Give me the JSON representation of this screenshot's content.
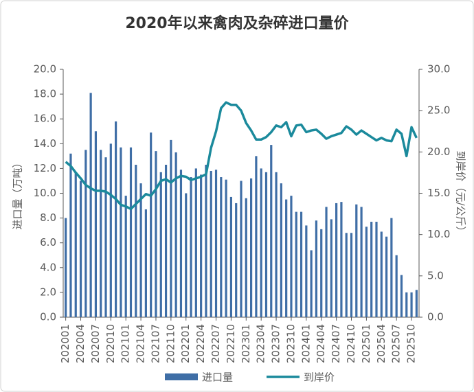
{
  "chart_data": {
    "type": "bar-line",
    "title": "2020年以来禽肉及杂碎进口量价",
    "ylabel": "进口量（万吨）",
    "y2label": "到岸价（元/公斤）",
    "categories": [
      "202001",
      null,
      null,
      "202004",
      null,
      null,
      "202007",
      null,
      null,
      "202010",
      null,
      null,
      "202101",
      null,
      null,
      "202104",
      null,
      null,
      "202107",
      null,
      null,
      "202110",
      null,
      null,
      "202201",
      null,
      null,
      "202204",
      null,
      null,
      "202207",
      null,
      null,
      "202210",
      null,
      null,
      "202301",
      null,
      null,
      "202304",
      null,
      null,
      "202307",
      null,
      null,
      "202310",
      null,
      null,
      "202401",
      null,
      null,
      "202404",
      null,
      null,
      "202407",
      null,
      null,
      "202410",
      null,
      null,
      "202501",
      null,
      null,
      "202504",
      null,
      null,
      "202507",
      null,
      null,
      "202510",
      null
    ],
    "series": [
      {
        "name": "进口量",
        "type": "bar",
        "color": "#3f6ea6",
        "values": [
          8.0,
          13.2,
          11.7,
          11.0,
          13.5,
          18.1,
          15.0,
          13.5,
          12.9,
          14.0,
          15.8,
          13.7,
          9.8,
          13.7,
          12.3,
          10.8,
          8.7,
          14.9,
          13.4,
          11.7,
          12.3,
          14.3,
          13.3,
          11.9,
          10.0,
          11.3,
          12.0,
          11.5,
          12.3,
          11.8,
          11.9,
          11.3,
          11.1,
          9.7,
          9.2,
          11.0,
          9.6,
          11.2,
          13.0,
          12.0,
          11.7,
          13.9,
          11.7,
          10.8,
          9.5,
          9.8,
          8.5,
          8.5,
          7.4,
          5.4,
          7.8,
          7.1,
          8.9,
          7.9,
          9.2,
          9.3,
          6.8,
          6.8,
          9.1,
          8.9,
          7.3,
          7.7,
          7.7,
          6.9,
          6.5,
          8.0,
          5.0,
          3.4,
          2.0,
          2.0,
          2.2
        ]
      },
      {
        "name": "到岸价",
        "type": "line",
        "axis": "y2",
        "color": "#1b8a9c",
        "values": [
          18.8,
          18.3,
          17.5,
          16.8,
          16.0,
          15.6,
          15.3,
          15.3,
          15.2,
          14.8,
          14.3,
          13.6,
          13.4,
          13.1,
          13.7,
          14.3,
          14.9,
          14.7,
          15.5,
          16.5,
          16.7,
          16.3,
          16.8,
          17.1,
          17.0,
          16.6,
          16.8,
          17.0,
          17.3,
          20.5,
          22.5,
          25.3,
          26.0,
          25.7,
          25.7,
          25.0,
          23.5,
          22.6,
          21.5,
          21.5,
          21.8,
          22.4,
          23.2,
          23.0,
          23.6,
          21.9,
          23.2,
          23.3,
          22.4,
          22.6,
          22.7,
          22.2,
          21.6,
          21.9,
          22.1,
          22.3,
          23.1,
          22.7,
          22.1,
          22.6,
          22.2,
          21.8,
          21.4,
          21.7,
          21.4,
          21.3,
          22.7,
          22.2,
          19.5,
          23.0,
          21.7
        ]
      }
    ],
    "ylim": [
      0,
      20
    ],
    "yticks": [
      {
        "value": 0,
        "label": "0.0"
      },
      {
        "value": 2,
        "label": "2.0"
      },
      {
        "value": 4,
        "label": "4.0"
      },
      {
        "value": 6,
        "label": "6.0"
      },
      {
        "value": 8,
        "label": "8.0"
      },
      {
        "value": 10,
        "label": "10.0"
      },
      {
        "value": 12,
        "label": "12.0"
      },
      {
        "value": 14,
        "label": "14.0"
      },
      {
        "value": 16,
        "label": "16.0"
      },
      {
        "value": 18,
        "label": "18.0"
      },
      {
        "value": 20,
        "label": "20.0"
      }
    ],
    "y2lim": [
      0,
      30
    ],
    "y2ticks": [
      {
        "value": 0,
        "label": "0.0"
      },
      {
        "value": 5,
        "label": "5.0"
      },
      {
        "value": 10,
        "label": "10.0"
      },
      {
        "value": 15,
        "label": "15.0"
      },
      {
        "value": 20,
        "label": "20.0"
      },
      {
        "value": 25,
        "label": "25.0"
      },
      {
        "value": 30,
        "label": "30.0"
      }
    ],
    "legend": "bottom"
  }
}
